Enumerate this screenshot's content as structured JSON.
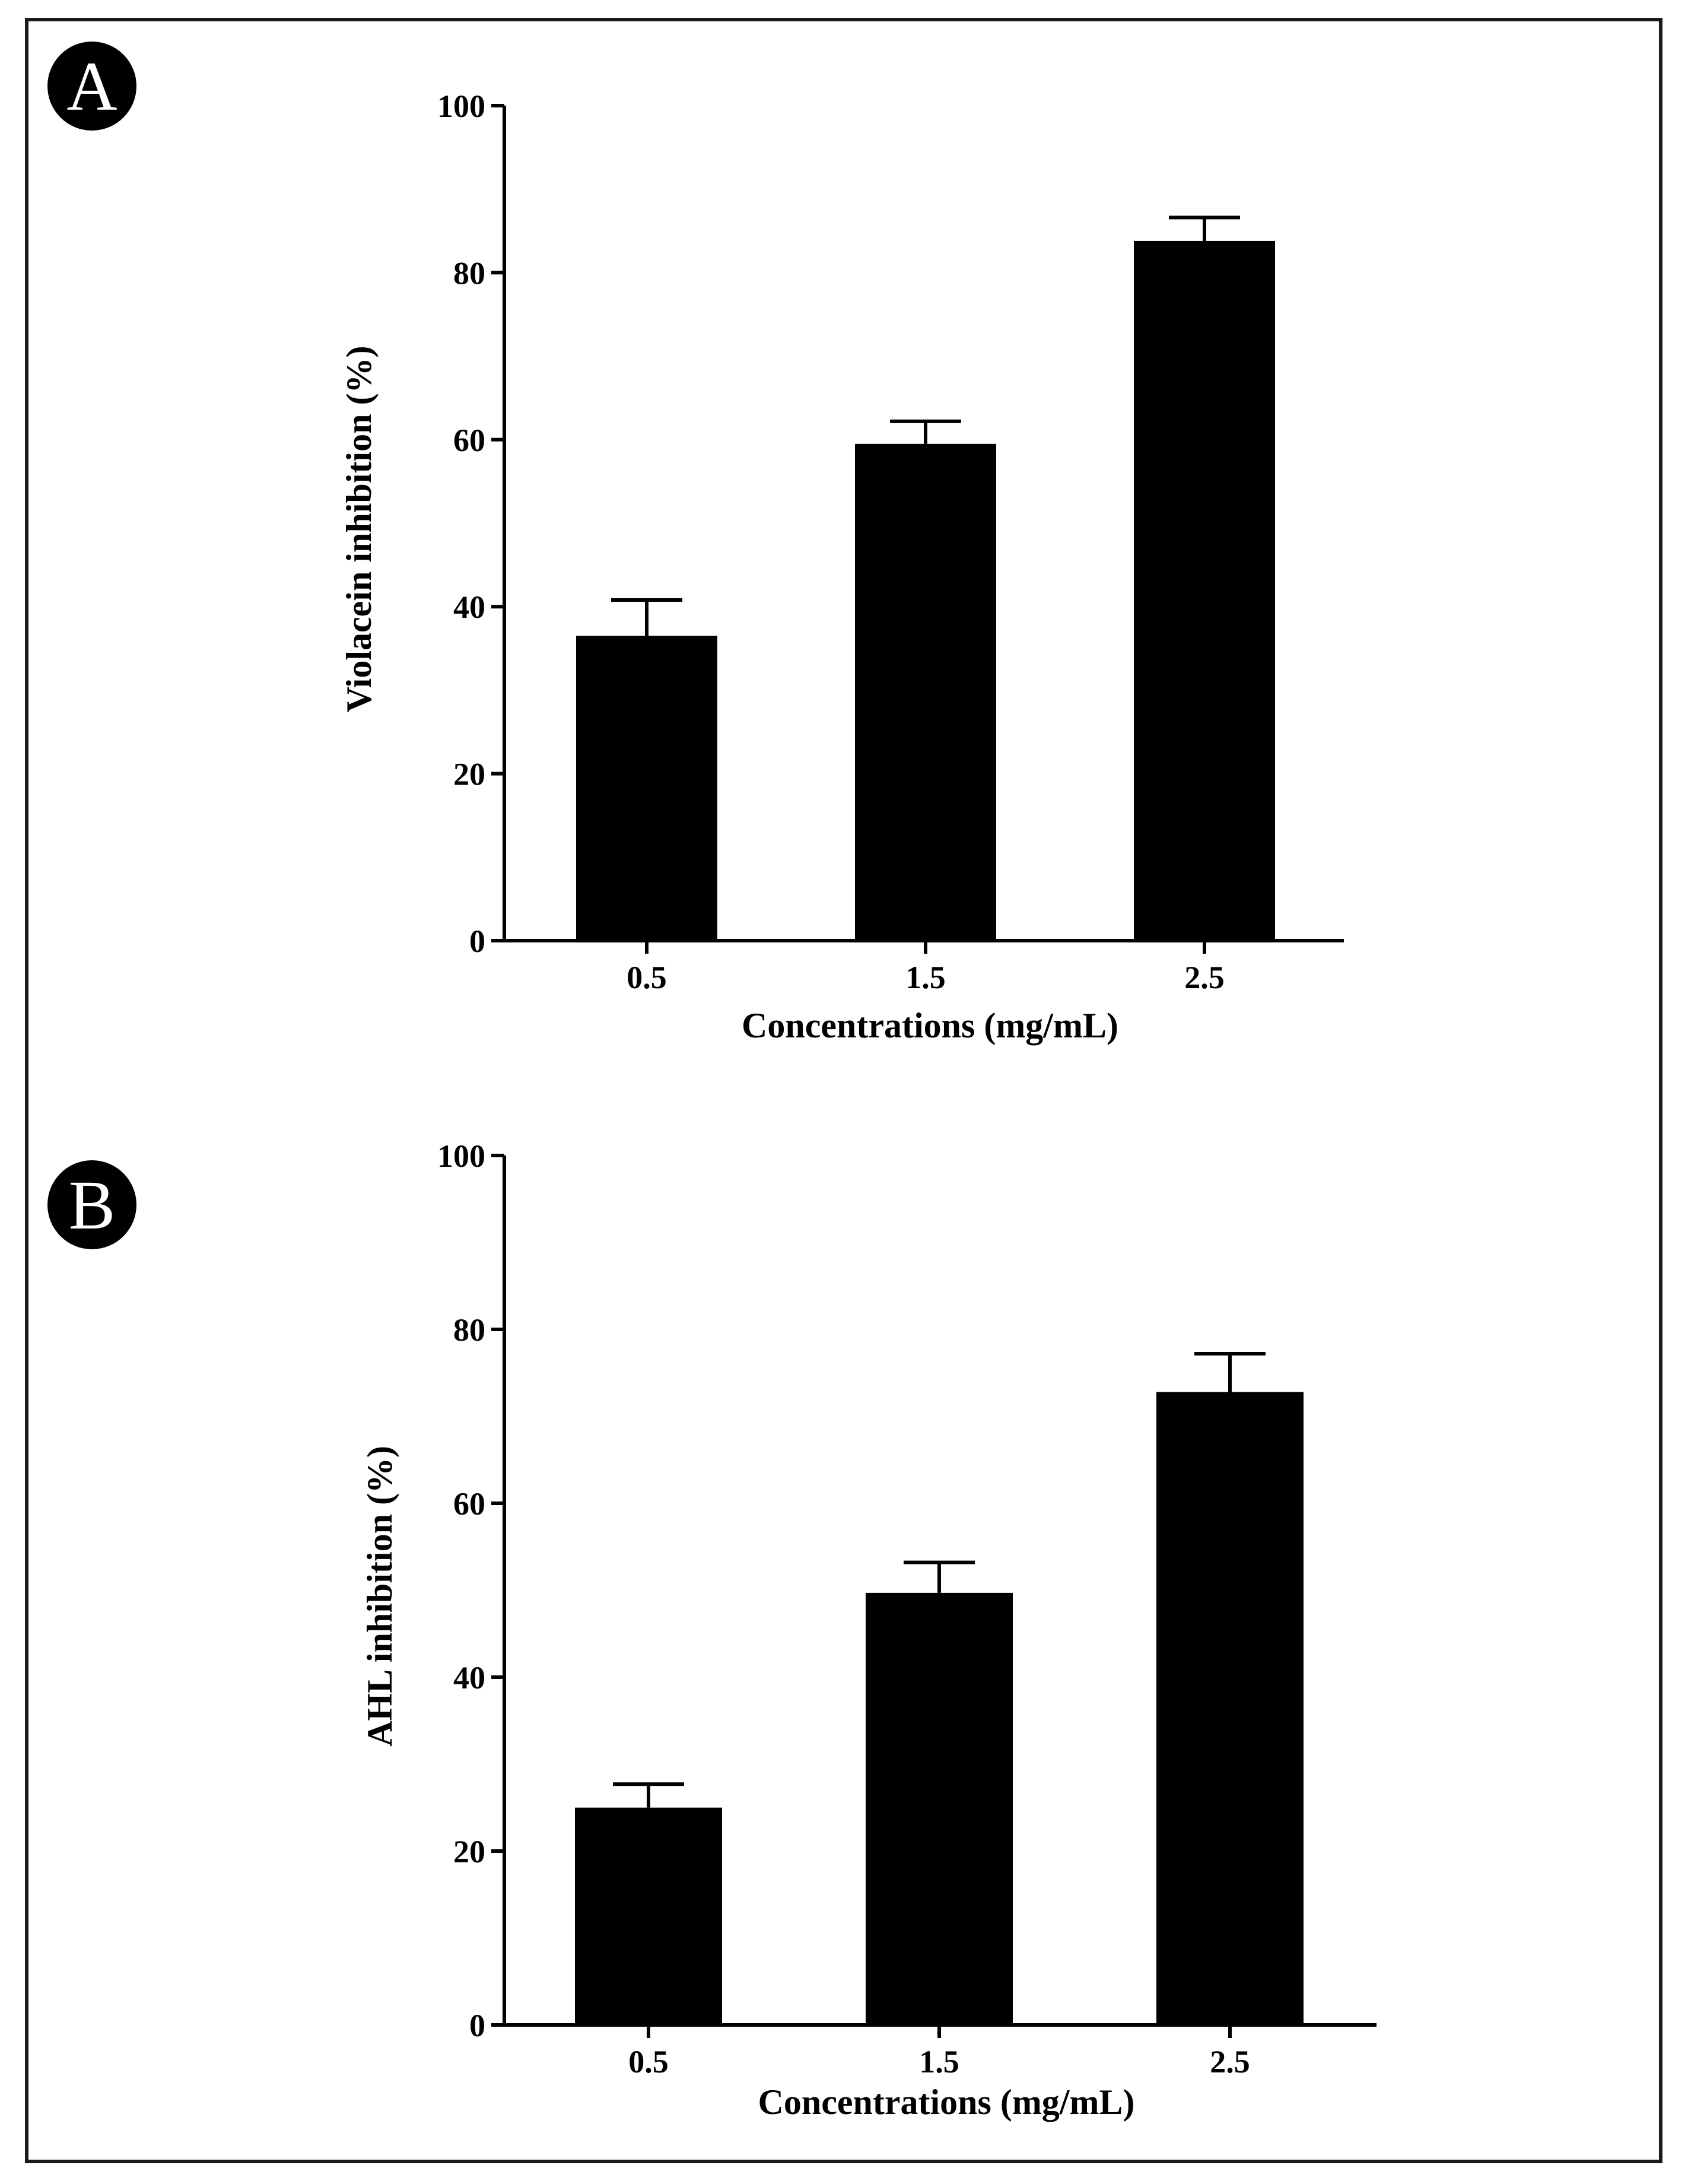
{
  "chart_data": [
    {
      "panel": "A",
      "type": "bar",
      "categories": [
        "0.5",
        "1.5",
        "2.5"
      ],
      "values": [
        36.5,
        59.5,
        83.8
      ],
      "errors": [
        4.3,
        2.7,
        2.8
      ],
      "xlabel": "Concentrations (mg/mL)",
      "ylabel": "Violacein inhibition (%)",
      "ylim": [
        0,
        100
      ],
      "yticks": [
        "0",
        "20",
        "40",
        "60",
        "80",
        "100"
      ],
      "color": "#000000"
    },
    {
      "panel": "B",
      "type": "bar",
      "categories": [
        "0.5",
        "1.5",
        "2.5"
      ],
      "values": [
        25.0,
        49.7,
        72.8
      ],
      "errors": [
        2.7,
        3.5,
        4.4
      ],
      "xlabel": "Concentrations (mg/mL)",
      "ylabel": "AHL inhibition (%)",
      "ylim": [
        0,
        100
      ],
      "yticks": [
        "0",
        "20",
        "40",
        "60",
        "80",
        "100"
      ],
      "color": "#000000"
    }
  ]
}
